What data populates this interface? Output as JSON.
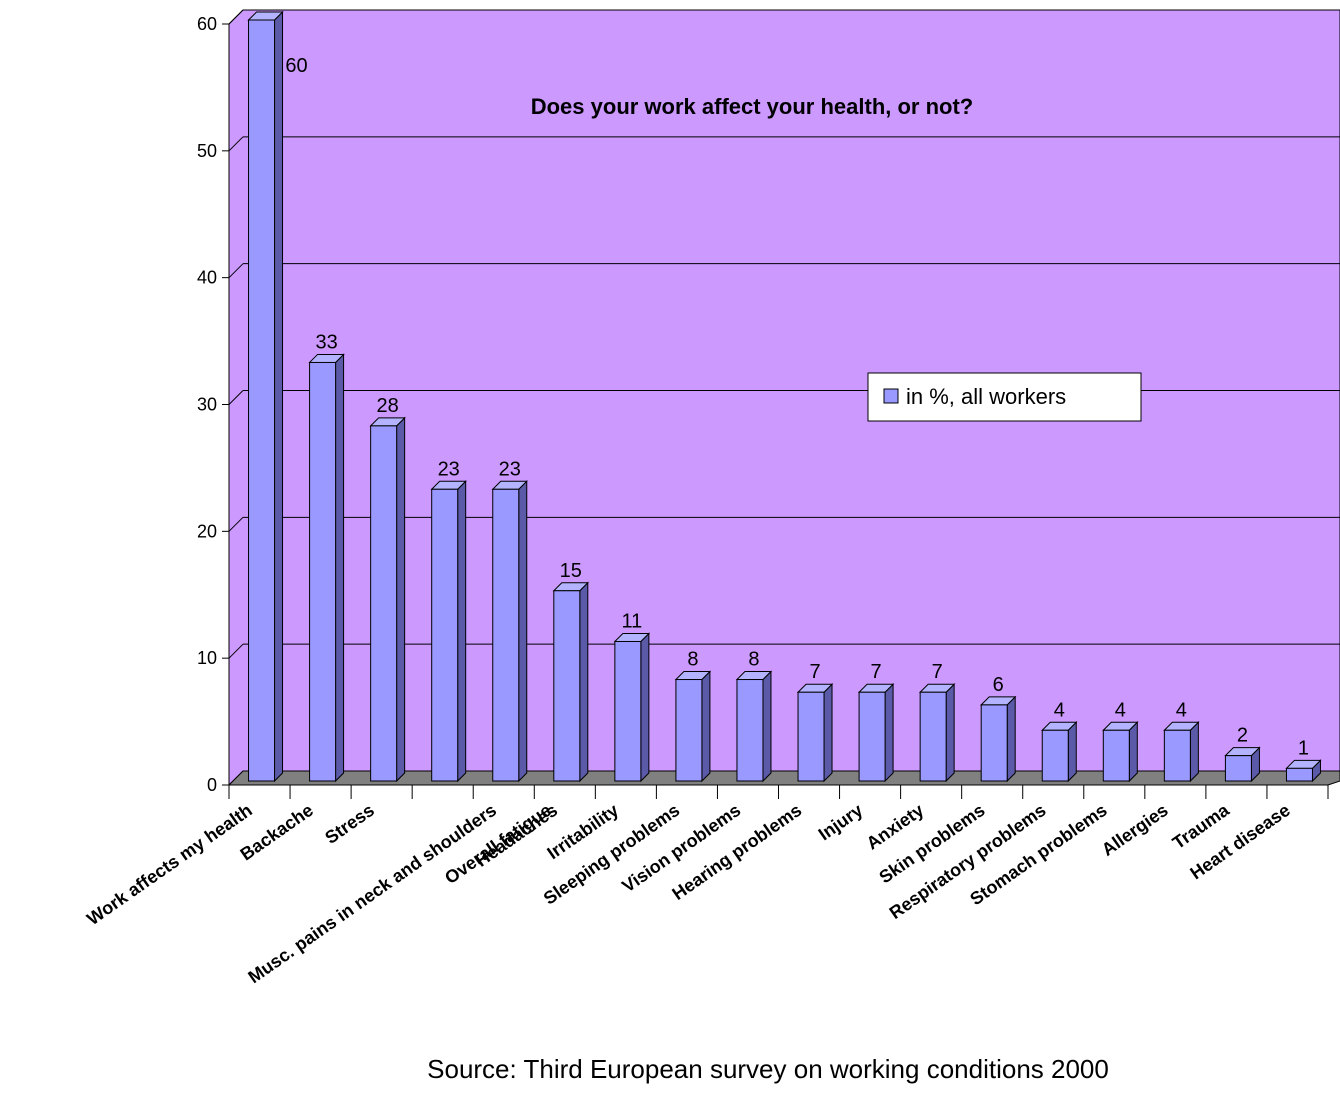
{
  "chart_data": {
    "type": "bar",
    "title": "Does your work affect your health, or not?",
    "source": "Source: Third European survey on working conditions 2000",
    "categories": [
      "Work affects my health",
      "Backache",
      "Stress",
      "Overall fatigue",
      "Musc. pains in neck and shoulders",
      "Headaches",
      "Irritability",
      "Sleeping problems",
      "Vision problems",
      "Hearing problems",
      "Injury",
      "Anxiety",
      "Skin problems",
      "Respiratory problems",
      "Stomach problems",
      "Allergies",
      "Trauma",
      "Heart disease"
    ],
    "series": [
      {
        "name": "in %, all workers",
        "values": [
          60,
          33,
          28,
          23,
          23,
          15,
          11,
          8,
          8,
          7,
          7,
          7,
          6,
          4,
          4,
          4,
          2,
          1
        ]
      }
    ],
    "ylim": [
      0,
      60
    ],
    "yticks": [
      0,
      10,
      20,
      30,
      40,
      50,
      60
    ],
    "grid": true,
    "legend_position": "right",
    "colors": {
      "plot_background": "#cc99ff",
      "bar_front": "#9999ff",
      "bar_top": "#b3b3ff",
      "bar_side": "#5a5aa8",
      "floor": "#808080",
      "gridline": "#000000"
    }
  }
}
